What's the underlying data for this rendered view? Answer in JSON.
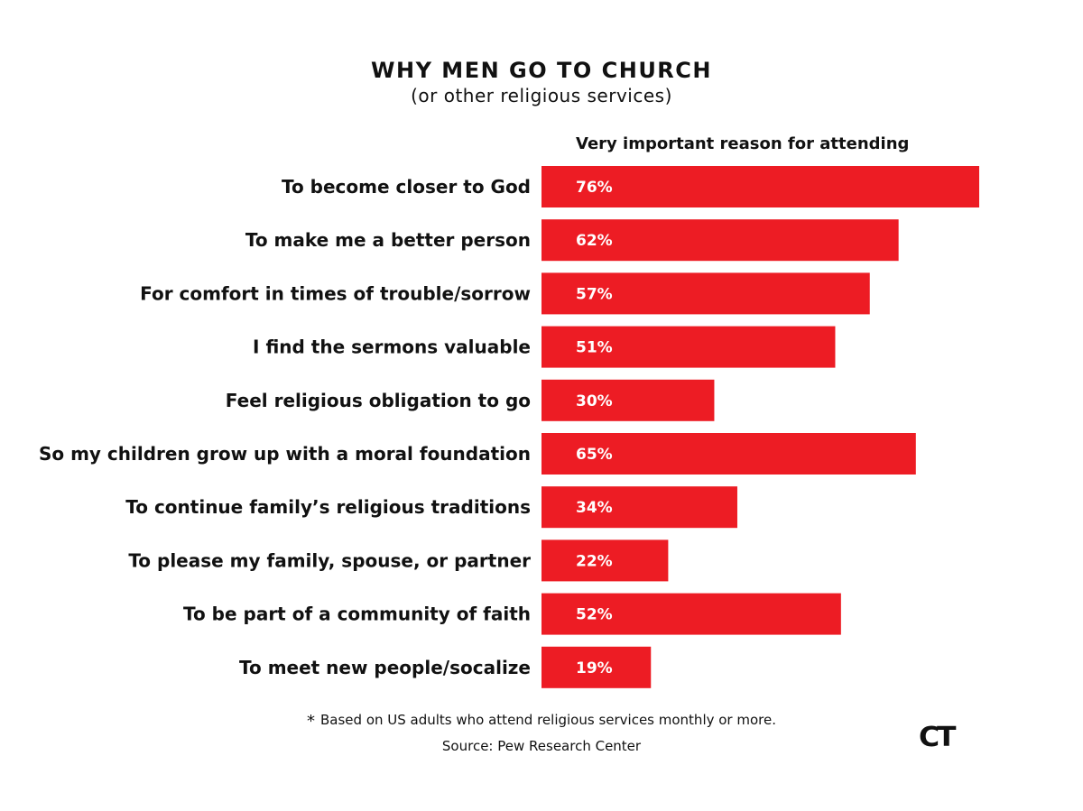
{
  "title": "WHY MEN GO TO CHURCH",
  "subtitle": "(or other religious services)",
  "footnote_marker": "*",
  "footnote": "Based on US adults who attend religious services monthly or more.",
  "source": "Source: Pew Research Center",
  "logo": "CT",
  "colors": {
    "bar": "#ED1C24",
    "text": "#111111",
    "value_text": "#FFFFFF"
  },
  "chart_data": {
    "type": "bar",
    "orientation": "horizontal",
    "series_header": "Very important reason for attending",
    "categories": [
      "To become closer to God",
      "To make me a better person",
      "For comfort in times of trouble/sorrow",
      "I find the sermons valuable",
      "Feel religious obligation to go",
      "So my children grow up with a moral foundation",
      "To continue family’s religious traditions",
      "To please my family, spouse, or partner",
      "To be part of a community of faith",
      "To meet new people/socalize"
    ],
    "values": [
      76,
      62,
      57,
      51,
      30,
      65,
      34,
      22,
      52,
      19
    ],
    "value_labels": [
      "76%",
      "62%",
      "57%",
      "51%",
      "30%",
      "65%",
      "34%",
      "22%",
      "52%",
      "19%"
    ],
    "unit": "%",
    "grid": false,
    "legend": "none"
  }
}
